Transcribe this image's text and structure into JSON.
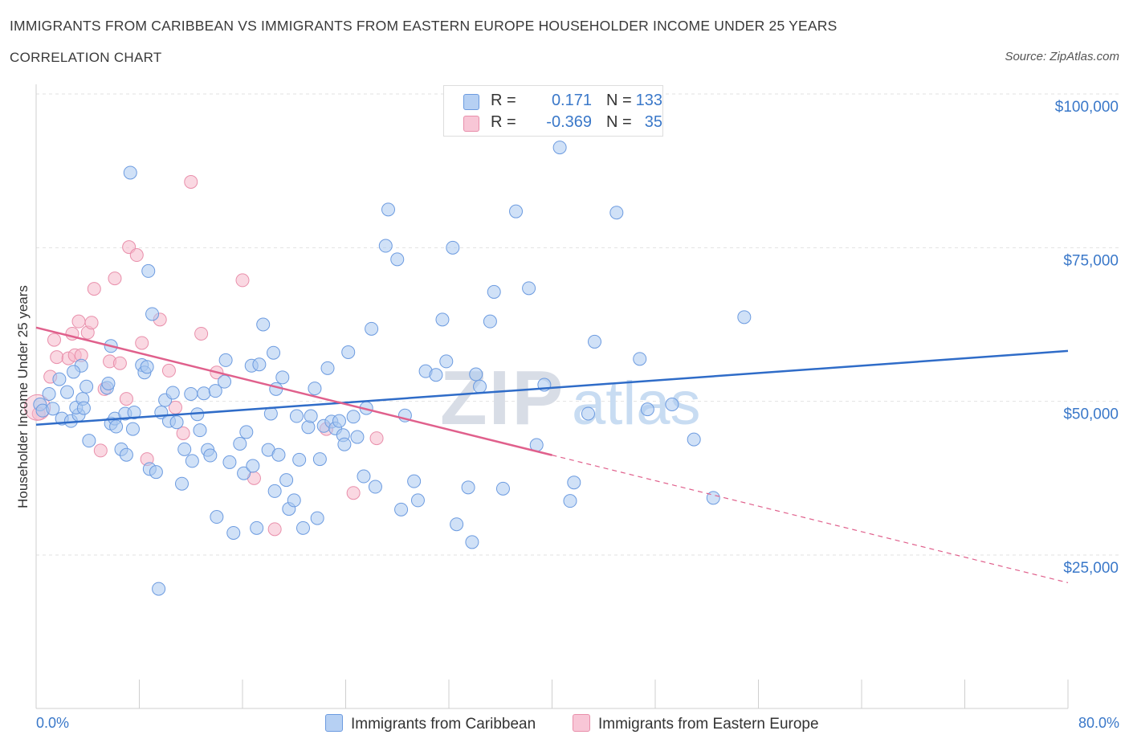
{
  "header": {
    "title": "IMMIGRANTS FROM CARIBBEAN VS IMMIGRANTS FROM EASTERN EUROPE HOUSEHOLDER INCOME UNDER 25 YEARS",
    "subtitle": "CORRELATION CHART",
    "source": "Source: ZipAtlas.com"
  },
  "legend": {
    "r_label": "R =",
    "n_label": "N =",
    "series": [
      {
        "r": "0.171",
        "n": "133"
      },
      {
        "r": "-0.369",
        "n": "35"
      }
    ]
  },
  "watermark": {
    "zip": "ZIP",
    "atlas": "atlas"
  },
  "colors": {
    "caribbean_fill": "#a9c8f0",
    "caribbean_stroke": "#6c9be0",
    "caribbean_line": "#2f6cc8",
    "europe_fill": "#f5b8cb",
    "europe_stroke": "#e98fab",
    "europe_line": "#e0608c",
    "axis_text": "#3a78c9"
  },
  "chart_data": {
    "type": "scatter",
    "title": "IMMIGRANTS FROM CARIBBEAN VS IMMIGRANTS FROM EASTERN EUROPE HOUSEHOLDER INCOME UNDER 25 YEARS",
    "ylabel": "Householder Income Under 25 years",
    "xlabel": "",
    "xlim": [
      0,
      80
    ],
    "ylim": [
      0,
      105000
    ],
    "x_tick_labels": [
      "0.0%",
      "80.0%"
    ],
    "y_ticks": [
      25000,
      50000,
      75000,
      100000
    ],
    "y_tick_labels": [
      "$25,000",
      "$50,000",
      "$75,000",
      "$100,000"
    ],
    "grid": true,
    "legend_position": "bottom",
    "series": [
      {
        "name": "Immigrants from Caribbean",
        "trend": {
          "x": [
            0,
            80
          ],
          "y": [
            46200,
            58200
          ],
          "dashed_from": null
        },
        "points": [
          [
            0.3,
            49500
          ],
          [
            0.5,
            48500
          ],
          [
            1.0,
            51200
          ],
          [
            1.3,
            48800
          ],
          [
            1.8,
            53600
          ],
          [
            2.0,
            47200
          ],
          [
            2.4,
            51500
          ],
          [
            2.7,
            46800
          ],
          [
            3.3,
            47800
          ],
          [
            3.5,
            55800
          ],
          [
            3.1,
            49000
          ],
          [
            2.9,
            54800
          ],
          [
            3.6,
            50400
          ],
          [
            3.7,
            48900
          ],
          [
            3.9,
            52400
          ],
          [
            4.1,
            43600
          ],
          [
            5.5,
            52200
          ],
          [
            5.6,
            52900
          ],
          [
            5.8,
            46400
          ],
          [
            6.1,
            47200
          ],
          [
            6.2,
            45900
          ],
          [
            5.8,
            59000
          ],
          [
            6.6,
            42200
          ],
          [
            6.9,
            48000
          ],
          [
            7.0,
            41300
          ],
          [
            7.5,
            45500
          ],
          [
            7.6,
            48200
          ],
          [
            7.3,
            87200
          ],
          [
            8.2,
            55900
          ],
          [
            8.4,
            54700
          ],
          [
            8.6,
            55600
          ],
          [
            8.8,
            39000
          ],
          [
            8.7,
            71200
          ],
          [
            9.3,
            38500
          ],
          [
            9.5,
            19500
          ],
          [
            9.7,
            48200
          ],
          [
            10.0,
            50200
          ],
          [
            10.3,
            46800
          ],
          [
            10.6,
            51400
          ],
          [
            10.9,
            46600
          ],
          [
            11.3,
            36600
          ],
          [
            11.5,
            42200
          ],
          [
            12.0,
            51200
          ],
          [
            12.1,
            40300
          ],
          [
            12.5,
            47900
          ],
          [
            13.0,
            51300
          ],
          [
            13.3,
            42100
          ],
          [
            13.9,
            51700
          ],
          [
            14.0,
            31200
          ],
          [
            14.6,
            53200
          ],
          [
            14.7,
            56700
          ],
          [
            15.0,
            40100
          ],
          [
            15.3,
            28600
          ],
          [
            15.8,
            43100
          ],
          [
            16.1,
            38300
          ],
          [
            16.3,
            45000
          ],
          [
            16.7,
            55800
          ],
          [
            17.3,
            56000
          ],
          [
            17.1,
            29400
          ],
          [
            17.6,
            62500
          ],
          [
            18.0,
            42100
          ],
          [
            18.2,
            48000
          ],
          [
            18.4,
            57900
          ],
          [
            18.6,
            52000
          ],
          [
            18.8,
            41300
          ],
          [
            19.1,
            53900
          ],
          [
            19.4,
            37200
          ],
          [
            19.6,
            32500
          ],
          [
            20.0,
            33900
          ],
          [
            20.2,
            47600
          ],
          [
            20.4,
            40500
          ],
          [
            20.7,
            29400
          ],
          [
            21.1,
            45800
          ],
          [
            21.3,
            47600
          ],
          [
            21.6,
            52100
          ],
          [
            22.0,
            40600
          ],
          [
            22.3,
            46000
          ],
          [
            22.6,
            55400
          ],
          [
            22.9,
            46700
          ],
          [
            23.2,
            45600
          ],
          [
            23.5,
            46800
          ],
          [
            23.8,
            44500
          ],
          [
            24.2,
            58000
          ],
          [
            24.6,
            47500
          ],
          [
            24.9,
            44200
          ],
          [
            25.4,
            37800
          ],
          [
            25.6,
            48900
          ],
          [
            26.3,
            36100
          ],
          [
            27.3,
            81200
          ],
          [
            27.1,
            75300
          ],
          [
            28.0,
            73100
          ],
          [
            28.6,
            47700
          ],
          [
            28.3,
            32400
          ],
          [
            29.3,
            37000
          ],
          [
            29.6,
            33900
          ],
          [
            30.2,
            54900
          ],
          [
            31.0,
            54300
          ],
          [
            31.5,
            63300
          ],
          [
            31.8,
            56500
          ],
          [
            32.3,
            75000
          ],
          [
            32.6,
            30000
          ],
          [
            33.5,
            36000
          ],
          [
            33.8,
            27100
          ],
          [
            34.1,
            54400
          ],
          [
            34.4,
            52400
          ],
          [
            35.2,
            63000
          ],
          [
            35.5,
            67800
          ],
          [
            36.2,
            35800
          ],
          [
            37.2,
            80900
          ],
          [
            38.2,
            68400
          ],
          [
            39.4,
            52700
          ],
          [
            38.8,
            42900
          ],
          [
            40.6,
            91300
          ],
          [
            41.7,
            36800
          ],
          [
            41.4,
            33800
          ],
          [
            42.8,
            48000
          ],
          [
            43.3,
            59700
          ],
          [
            44.4,
            94800
          ],
          [
            45.0,
            80700
          ],
          [
            46.8,
            56900
          ],
          [
            47.4,
            48700
          ],
          [
            49.3,
            49500
          ],
          [
            51.0,
            43800
          ],
          [
            52.5,
            34300
          ],
          [
            54.9,
            63700
          ],
          [
            26.0,
            61800
          ],
          [
            13.5,
            41200
          ],
          [
            16.8,
            39500
          ],
          [
            23.9,
            43000
          ],
          [
            18.5,
            35400
          ],
          [
            12.7,
            45300
          ],
          [
            21.8,
            31000
          ],
          [
            9.0,
            64200
          ]
        ]
      },
      {
        "name": "Immigrants from Eastern Europe",
        "trend": {
          "x": [
            0,
            80
          ],
          "y": [
            62000,
            20500
          ],
          "dashed_from": 40
        },
        "points": [
          [
            0.2,
            48000
          ],
          [
            1.1,
            54000
          ],
          [
            1.4,
            60000
          ],
          [
            1.6,
            57200
          ],
          [
            2.5,
            57000
          ],
          [
            2.8,
            61000
          ],
          [
            3.0,
            57500
          ],
          [
            3.3,
            63000
          ],
          [
            3.5,
            57500
          ],
          [
            4.0,
            61200
          ],
          [
            4.3,
            62800
          ],
          [
            4.5,
            68300
          ],
          [
            5.0,
            42000
          ],
          [
            5.3,
            52000
          ],
          [
            5.7,
            56500
          ],
          [
            6.1,
            70000
          ],
          [
            6.5,
            56200
          ],
          [
            7.0,
            50400
          ],
          [
            7.2,
            75100
          ],
          [
            7.8,
            73800
          ],
          [
            8.2,
            59500
          ],
          [
            8.6,
            40600
          ],
          [
            9.6,
            63300
          ],
          [
            10.3,
            55000
          ],
          [
            10.8,
            49000
          ],
          [
            11.4,
            44800
          ],
          [
            12.0,
            85700
          ],
          [
            12.8,
            61000
          ],
          [
            14.0,
            54700
          ],
          [
            16.0,
            69700
          ],
          [
            16.9,
            37500
          ],
          [
            18.5,
            29200
          ],
          [
            22.5,
            45500
          ],
          [
            24.6,
            35100
          ],
          [
            26.4,
            44000
          ]
        ]
      }
    ]
  },
  "bottom_legend": {
    "items": [
      "Immigrants from Caribbean",
      "Immigrants from Eastern Europe"
    ]
  },
  "axes": {
    "x_min_label": "0.0%",
    "x_max_label": "80.0%",
    "y_title": "Householder Income Under 25 years"
  }
}
